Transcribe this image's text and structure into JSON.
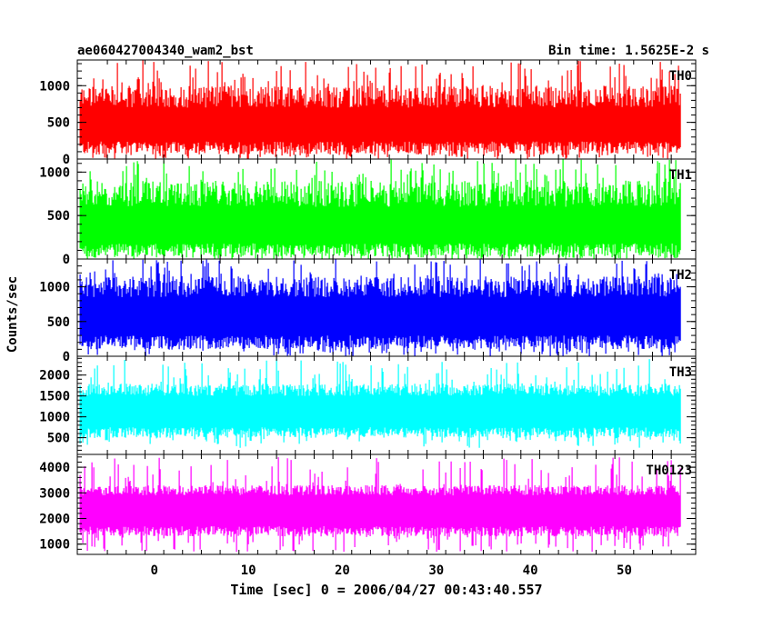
{
  "header": {
    "left_title": "ae060427004340_wam2_bst",
    "right_title": "Bin time: 1.5625E-2 s"
  },
  "ylabel": "Counts/sec",
  "xlabel": "Time [sec] 0 = 2006/04/27 00:43:40.557",
  "chart_data": [
    {
      "type": "line",
      "name": "TH0",
      "color": "#ff0000",
      "xlim": [
        -8.2,
        57.6
      ],
      "ylim": [
        0,
        1350
      ],
      "yticks": [
        0,
        500,
        1000
      ],
      "x_range": [
        -7.9,
        56
      ],
      "band": {
        "low": [
          60,
          240
        ],
        "high": [
          700,
          1000
        ],
        "peak_max": 1350,
        "dip_min": 0
      }
    },
    {
      "type": "line",
      "name": "TH1",
      "color": "#00ff00",
      "xlim": [
        -8.2,
        57.6
      ],
      "ylim": [
        0,
        1150
      ],
      "yticks": [
        0,
        500,
        1000
      ],
      "x_range": [
        -7.9,
        56
      ],
      "band": {
        "low": [
          30,
          180
        ],
        "high": [
          600,
          900
        ],
        "peak_max": 1150,
        "dip_min": 0
      }
    },
    {
      "type": "line",
      "name": "TH2",
      "color": "#0000ff",
      "xlim": [
        -8.2,
        57.6
      ],
      "ylim": [
        0,
        1400
      ],
      "yticks": [
        0,
        500,
        1000
      ],
      "x_range": [
        -7.9,
        56
      ],
      "band": {
        "low": [
          100,
          300
        ],
        "high": [
          850,
          1150
        ],
        "peak_max": 1400,
        "dip_min": 0
      }
    },
    {
      "type": "line",
      "name": "TH3",
      "color": "#00ffff",
      "xlim": [
        -8.2,
        57.6
      ],
      "ylim": [
        100,
        2450
      ],
      "yticks": [
        500,
        1000,
        1500,
        2000
      ],
      "x_range": [
        -7.9,
        56
      ],
      "band": {
        "low": [
          500,
          750
        ],
        "high": [
          1500,
          1800
        ],
        "peak_max": 2400,
        "dip_min": 250
      }
    },
    {
      "type": "line",
      "name": "TH0123",
      "color": "#ff00ff",
      "xlim": [
        -8.2,
        57.6
      ],
      "ylim": [
        600,
        4500
      ],
      "yticks": [
        1000,
        2000,
        3000,
        4000
      ],
      "x_range": [
        -7.9,
        56
      ],
      "band": {
        "low": [
          1300,
          1700
        ],
        "high": [
          2900,
          3300
        ],
        "peak_max": 4400,
        "dip_min": 700
      }
    }
  ],
  "xticks": [
    0,
    10,
    20,
    30,
    40,
    50
  ]
}
